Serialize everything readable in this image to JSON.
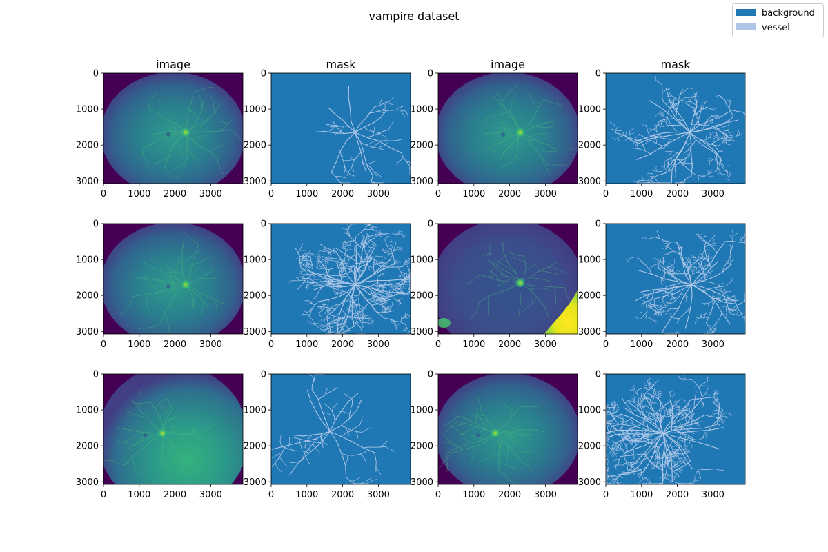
{
  "chart_data": {
    "type": "image-grid",
    "title": "vampire dataset",
    "legend": {
      "placement": "top-right",
      "entries": [
        {
          "label": "background",
          "color": "#1f77b4"
        },
        {
          "label": "vessel",
          "color": "#aec7e8"
        }
      ]
    },
    "columns": [
      "image",
      "mask",
      "image",
      "mask"
    ],
    "xticks": [
      0,
      1000,
      2000,
      3000
    ],
    "yticks": [
      0,
      1000,
      2000,
      3000
    ],
    "xlim": [
      0,
      3900
    ],
    "ylim": [
      3072,
      0
    ],
    "rows": 3,
    "panels": [
      {
        "row": 0,
        "col": 0,
        "kind": "image",
        "shape": "fundus-oval",
        "disc_at": [
          2300,
          1650
        ]
      },
      {
        "row": 0,
        "col": 1,
        "kind": "mask",
        "center_at": [
          2350,
          1650
        ],
        "density": "sparse"
      },
      {
        "row": 0,
        "col": 2,
        "kind": "image",
        "shape": "fundus-oval",
        "disc_at": [
          2300,
          1650
        ]
      },
      {
        "row": 0,
        "col": 3,
        "kind": "mask",
        "center_at": [
          2350,
          1650
        ],
        "density": "medium"
      },
      {
        "row": 1,
        "col": 0,
        "kind": "image",
        "shape": "fundus-oval",
        "disc_at": [
          2300,
          1700
        ]
      },
      {
        "row": 1,
        "col": 1,
        "kind": "mask",
        "center_at": [
          2350,
          1700
        ],
        "density": "dense"
      },
      {
        "row": 1,
        "col": 2,
        "kind": "image",
        "shape": "fundus-bright-artifact",
        "disc_at": [
          2300,
          1650
        ]
      },
      {
        "row": 1,
        "col": 3,
        "kind": "mask",
        "center_at": [
          2400,
          1700
        ],
        "density": "medium"
      },
      {
        "row": 2,
        "col": 0,
        "kind": "image",
        "shape": "fundus-large",
        "disc_at": [
          1650,
          1650
        ]
      },
      {
        "row": 2,
        "col": 1,
        "kind": "mask",
        "center_at": [
          1650,
          1600
        ],
        "density": "sparse"
      },
      {
        "row": 2,
        "col": 2,
        "kind": "image",
        "shape": "fundus-oval",
        "disc_at": [
          1600,
          1650
        ]
      },
      {
        "row": 2,
        "col": 3,
        "kind": "mask",
        "center_at": [
          1600,
          1650
        ],
        "density": "dense"
      }
    ]
  }
}
